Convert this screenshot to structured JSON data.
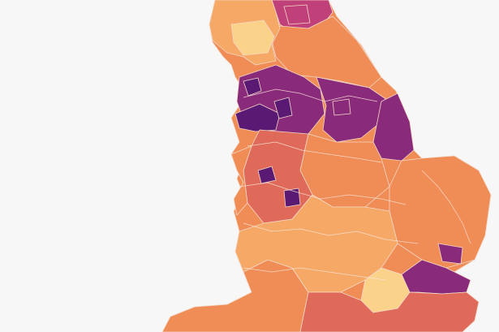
{
  "map": {
    "background": "#f7f7f7",
    "palette": {
      "very_high": "#5a1a73",
      "high": "#8a2a7b",
      "medium_high": "#c0407a",
      "medium": "#e06a5a",
      "medium_low": "#f08c55",
      "low": "#f6a866",
      "very_low": "#fbd28a"
    },
    "regions": [
      {
        "id": "north-east",
        "level": "medium_high"
      },
      {
        "id": "north-yorkshire",
        "level": "medium_low"
      },
      {
        "id": "cumbria",
        "level": "low"
      },
      {
        "id": "lake-district",
        "level": "very_low"
      },
      {
        "id": "lancashire-manchester",
        "level": "high"
      },
      {
        "id": "liverpool-city-region",
        "level": "very_high"
      },
      {
        "id": "yorkshire-humber",
        "level": "high"
      },
      {
        "id": "lincolnshire",
        "level": "high"
      },
      {
        "id": "east-midlands",
        "level": "medium_low"
      },
      {
        "id": "west-midlands",
        "level": "medium"
      },
      {
        "id": "wales-border",
        "level": "medium_low"
      },
      {
        "id": "east-anglia",
        "level": "medium_low"
      },
      {
        "id": "south-west",
        "level": "medium_low"
      },
      {
        "id": "south-central",
        "level": "low"
      },
      {
        "id": "london",
        "level": "very_low"
      },
      {
        "id": "thames-estuary",
        "level": "high"
      },
      {
        "id": "kent",
        "level": "medium"
      }
    ]
  }
}
